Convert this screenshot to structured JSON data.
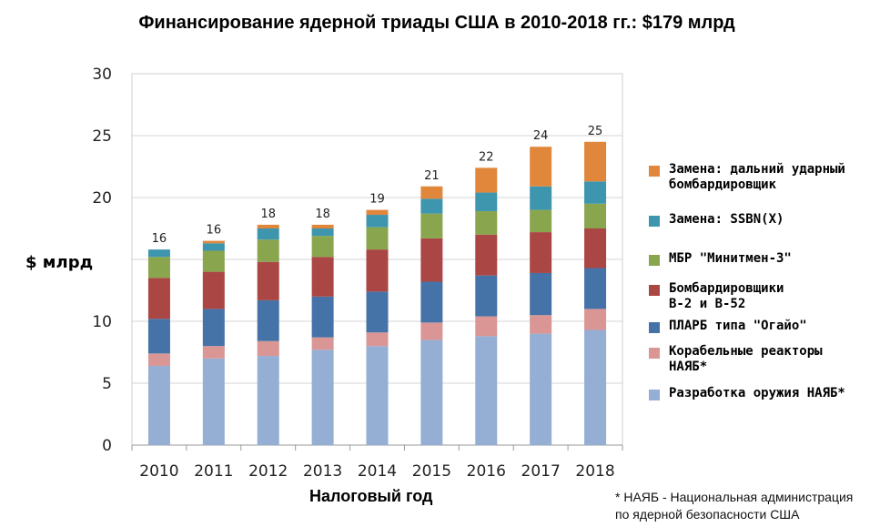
{
  "chart_data": {
    "type": "bar",
    "stacked": true,
    "title": "Финансирование ядерной триады США в 2010-2018 гг.: $179 млрд",
    "xlabel": "Налоговый год",
    "ylabel": "$ млрд",
    "ylim": [
      0,
      30
    ],
    "yticks": [
      "0",
      "5",
      "10",
      "",
      "20",
      "25",
      "30"
    ],
    "ytick_values": [
      0,
      5,
      10,
      15,
      20,
      25,
      30
    ],
    "categories": [
      "2010",
      "2011",
      "2012",
      "2013",
      "2014",
      "2015",
      "2016",
      "2017",
      "2018"
    ],
    "totals_labels": [
      "16",
      "16",
      "18",
      "18",
      "19",
      "21",
      "22",
      "24",
      "25"
    ],
    "series": [
      {
        "name": "Разработка оружия НАЯБ*",
        "color": "#95aed4",
        "values": [
          6.4,
          7.0,
          7.2,
          7.7,
          8.0,
          8.5,
          8.8,
          9.0,
          9.3
        ]
      },
      {
        "name": "Корабельные реакторы\nНАЯБ*",
        "color": "#d99694",
        "values": [
          1.0,
          1.0,
          1.2,
          1.0,
          1.1,
          1.4,
          1.6,
          1.5,
          1.7
        ]
      },
      {
        "name": "ПЛАРБ типа \"Огайо\"",
        "color": "#4572a7",
        "values": [
          2.8,
          3.0,
          3.3,
          3.3,
          3.3,
          3.3,
          3.3,
          3.4,
          3.3
        ]
      },
      {
        "name": "Бомбардировщики\nВ-2 и В-52",
        "color": "#aa4643",
        "values": [
          3.3,
          3.0,
          3.1,
          3.2,
          3.4,
          3.5,
          3.3,
          3.3,
          3.2
        ]
      },
      {
        "name": "МБР \"Минитмен-3\"",
        "color": "#89a54e",
        "values": [
          1.7,
          1.7,
          1.8,
          1.7,
          1.8,
          2.0,
          1.9,
          1.8,
          2.0
        ]
      },
      {
        "name": "Замена: SSBN(X)",
        "color": "#3d96ae",
        "values": [
          0.6,
          0.6,
          0.9,
          0.6,
          1.0,
          1.2,
          1.5,
          1.9,
          1.8
        ]
      },
      {
        "name": "Замена: дальний ударный\nбомбардировщик",
        "color": "#e0873c",
        "values": [
          0.0,
          0.2,
          0.3,
          0.3,
          0.4,
          1.0,
          2.0,
          3.2,
          3.2
        ]
      }
    ]
  },
  "footnote": "* НАЯБ - Национальная администрация\nпо ядерной безопасности США"
}
